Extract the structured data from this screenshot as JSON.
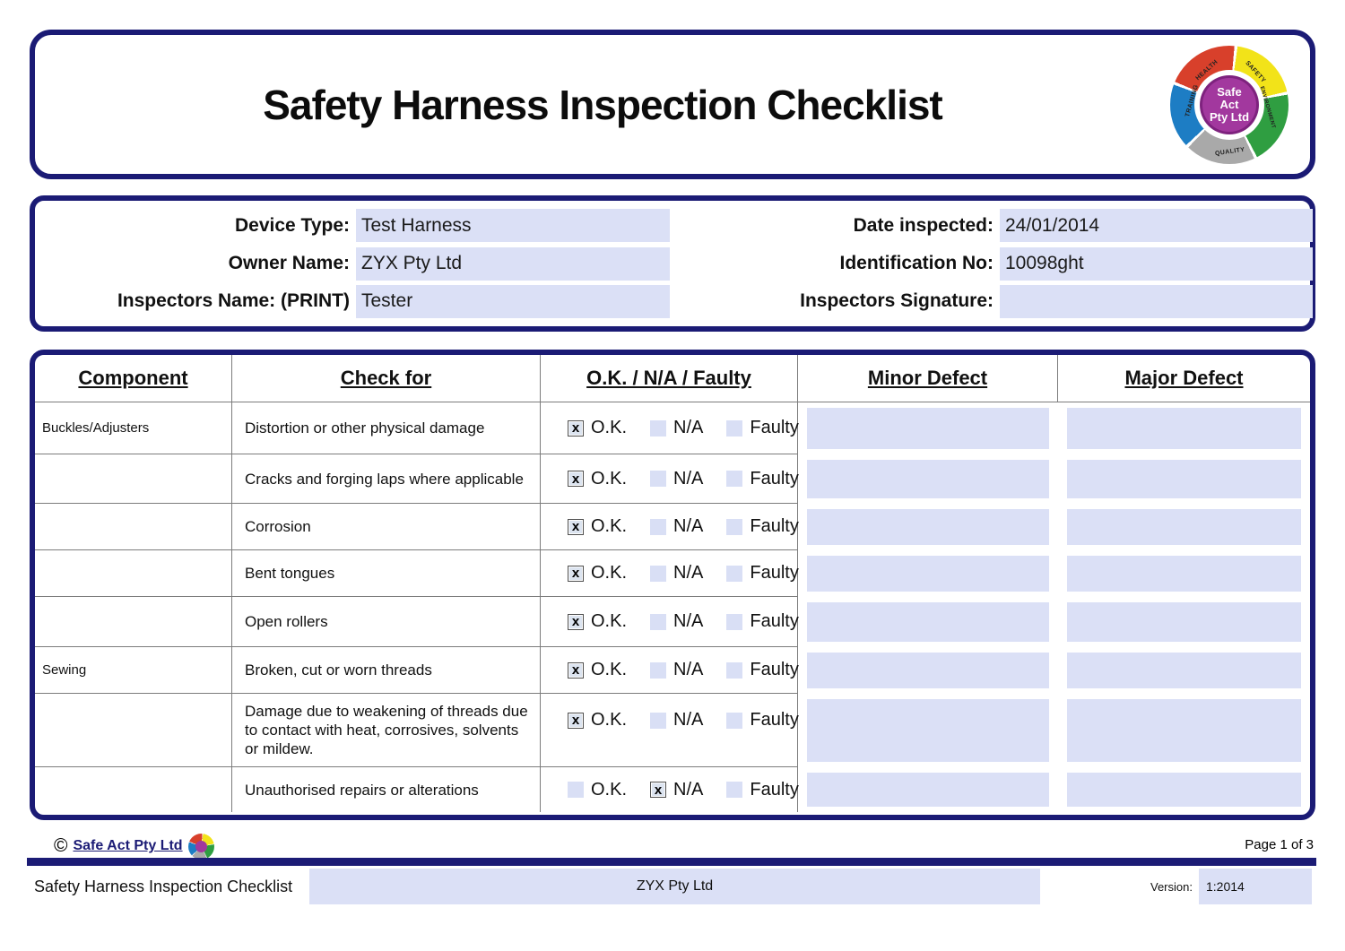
{
  "header": {
    "title": "Safety Harness Inspection Checklist"
  },
  "logo": {
    "center_lines": [
      "Safe",
      "Act",
      "Pty Ltd"
    ],
    "center_color": "#a2389e",
    "segments": [
      {
        "label": "HEALTH",
        "color": "#d8402b"
      },
      {
        "label": "SAFETY",
        "color": "#f2e319"
      },
      {
        "label": "ENVIRONMENT",
        "color": "#2f9e41"
      },
      {
        "label": "QUALITY",
        "color": "#a9a9a9"
      },
      {
        "label": "TRAINING",
        "color": "#1d7dc4"
      }
    ]
  },
  "info": {
    "fields": [
      {
        "id": "device-type",
        "label": "Device Type:",
        "value": "Test Harness"
      },
      {
        "id": "date-inspected",
        "label": "Date inspected:",
        "value": "24/01/2014"
      },
      {
        "id": "owner-name",
        "label": "Owner Name:",
        "value": "ZYX Pty Ltd"
      },
      {
        "id": "identification-no",
        "label": "Identification No:",
        "value": "10098ght"
      },
      {
        "id": "inspectors-name",
        "label": "Inspectors Name: (PRINT)",
        "value": "Tester"
      },
      {
        "id": "inspectors-signature",
        "label": "Inspectors Signature:",
        "value": ""
      }
    ]
  },
  "table": {
    "headers": [
      "Component",
      "Check for",
      "O.K. / N/A / Faulty",
      "Minor Defect",
      "Major Defect"
    ],
    "status_options": [
      "O.K.",
      "N/A",
      "Faulty"
    ],
    "checked_mark": "x",
    "rows": [
      {
        "component": "Buckles/Adjusters",
        "check_for": "Distortion or other physical damage",
        "status": "O.K.",
        "minor_defect": "",
        "major_defect": ""
      },
      {
        "component": "",
        "check_for": "Cracks and forging laps where applicable",
        "status": "O.K.",
        "minor_defect": "",
        "major_defect": ""
      },
      {
        "component": "",
        "check_for": "Corrosion",
        "status": "O.K.",
        "minor_defect": "",
        "major_defect": ""
      },
      {
        "component": "",
        "check_for": "Bent tongues",
        "status": "O.K.",
        "minor_defect": "",
        "major_defect": ""
      },
      {
        "component": "",
        "check_for": "Open rollers",
        "status": "O.K.",
        "minor_defect": "",
        "major_defect": ""
      },
      {
        "component": "Sewing",
        "check_for": "Broken, cut or worn threads",
        "status": "O.K.",
        "minor_defect": "",
        "major_defect": ""
      },
      {
        "component": "",
        "check_for": "Damage due to weakening of threads due to contact with heat, corrosives, solvents or mildew.",
        "status": "O.K.",
        "minor_defect": "",
        "major_defect": ""
      },
      {
        "component": "",
        "check_for": "Unauthorised repairs or alterations",
        "status": "N/A",
        "minor_defect": "",
        "major_defect": ""
      }
    ]
  },
  "footer": {
    "copyright_symbol": "©",
    "copyright_link": "Safe Act Pty Ltd",
    "page_indicator": "Page 1 of 3",
    "doc_title": "Safety Harness Inspection Checklist",
    "company_field": "ZYX Pty Ltd",
    "version_label": "Version:",
    "version_value": "1:2014"
  },
  "colors": {
    "navy": "#1b1b75",
    "field_lavender": "#dbe0f6",
    "gridline": "#7c7c7c",
    "checkbox_checked_bg": "#dce4f0",
    "checkbox_unchecked_bg": "#d9dff5"
  }
}
